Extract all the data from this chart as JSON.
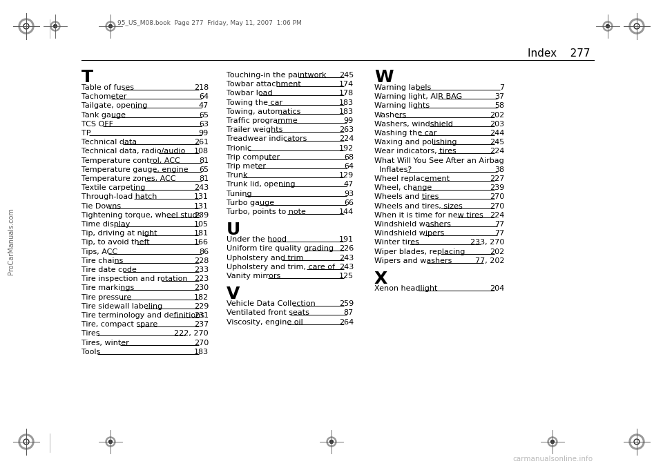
{
  "page_title": "Index    277",
  "header_file": "95_US_M08.book  Page 277  Friday, May 11, 2007  1:06 PM",
  "background_color": "#ffffff",
  "text_color": "#000000",
  "section_T": "T",
  "section_U": "U",
  "section_V": "V",
  "section_W": "W",
  "section_X": "X",
  "col1_entries": [
    [
      "Table of fuses",
      "218"
    ],
    [
      "Tachometer",
      "64"
    ],
    [
      "Tailgate, opening",
      "47"
    ],
    [
      "Tank gauge",
      "65"
    ],
    [
      "TCS OFF",
      "63"
    ],
    [
      "TP",
      "99"
    ],
    [
      "Technical data",
      "261"
    ],
    [
      "Technical data, radio/audio",
      "108"
    ],
    [
      "Temperature control, ACC",
      "81"
    ],
    [
      "Temperature gauge, engine",
      "65"
    ],
    [
      "Temperature zones, ACC",
      "81"
    ],
    [
      "Textile carpeting",
      "243"
    ],
    [
      "Through-load hatch",
      "131"
    ],
    [
      "Tie Downs",
      "131"
    ],
    [
      "Tightening torque, wheel studs",
      "239"
    ],
    [
      "Time display",
      "105"
    ],
    [
      "Tip, driving at night",
      "181"
    ],
    [
      "Tip, to avoid theft",
      "166"
    ],
    [
      "Tips, ACC",
      "86"
    ],
    [
      "Tire chains",
      "228"
    ],
    [
      "Tire date code",
      "233"
    ],
    [
      "Tire inspection and rotation",
      "223"
    ],
    [
      "Tire markings",
      "230"
    ],
    [
      "Tire pressure",
      "182"
    ],
    [
      "Tire sidewall labeling",
      "229"
    ],
    [
      "Tire terminology and definitions",
      "231"
    ],
    [
      "Tire, compact spare",
      "237"
    ],
    [
      "Tires",
      "222, 270"
    ],
    [
      "Tires, winter",
      "270"
    ],
    [
      "Tools",
      "183"
    ]
  ],
  "col2_T_entries": [
    [
      "Touching-in the paintwork",
      "245"
    ],
    [
      "Towbar attachment",
      "174"
    ],
    [
      "Towbar load",
      "178"
    ],
    [
      "Towing the car",
      "183"
    ],
    [
      "Towing, automatics",
      "183"
    ],
    [
      "Traffic programme",
      "99"
    ],
    [
      "Trailer weights",
      "263"
    ],
    [
      "Treadwear indicators",
      "224"
    ],
    [
      "Trionic",
      "192"
    ],
    [
      "Trip computer",
      "68"
    ],
    [
      "Trip meter",
      "64"
    ],
    [
      "Trunk",
      "129"
    ],
    [
      "Trunk lid, opening",
      "47"
    ],
    [
      "Tuning",
      "93"
    ],
    [
      "Turbo gauge",
      "66"
    ],
    [
      "Turbo, points to note",
      "144"
    ]
  ],
  "col2_U_entries": [
    [
      "Under the hood",
      "191"
    ],
    [
      "Uniform tire quality grading",
      "226"
    ],
    [
      "Upholstery and trim",
      "243"
    ],
    [
      "Upholstery and trim, care of",
      "243"
    ],
    [
      "Vanity mirrors",
      "125"
    ]
  ],
  "col2_V_entries": [
    [
      "Vehicle Data Collection",
      "259"
    ],
    [
      "Ventilated front seats",
      "87"
    ],
    [
      "Viscosity, engine oil",
      "264"
    ]
  ],
  "col3_W_entries": [
    [
      "Warning labels",
      "7"
    ],
    [
      "Warning light, AIR BAG",
      "37"
    ],
    [
      "Warning lights",
      "58"
    ],
    [
      "Washers",
      "202"
    ],
    [
      "Washers, windshield",
      "203"
    ],
    [
      "Washing the car",
      "244"
    ],
    [
      "Waxing and polishing",
      "245"
    ],
    [
      "Wear indicators, tires",
      "224"
    ],
    [
      "What Will You See After an Airbag",
      ""
    ],
    [
      "  Inflates?",
      "38"
    ],
    [
      "Wheel replacement",
      "227"
    ],
    [
      "Wheel, change",
      "239"
    ],
    [
      "Wheels and tires",
      "270"
    ],
    [
      "Wheels and tires, sizes",
      "270"
    ],
    [
      "When it is time for new tires",
      "224"
    ],
    [
      "Windshield washers",
      "77"
    ],
    [
      "Windshield wipers",
      "77"
    ],
    [
      "Winter tires",
      "233, 270"
    ],
    [
      "Wiper blades, replacing",
      "202"
    ],
    [
      "Wipers and washers",
      "77, 202"
    ]
  ],
  "col3_X_entries": [
    [
      "Xenon headlight",
      "204"
    ]
  ],
  "sidebar_text": "ProCarManuals.com",
  "watermark_text": "carmanualsonline.info",
  "reg_mark_color": "#555555",
  "line_color": "#000000",
  "leader_color": "#333333"
}
